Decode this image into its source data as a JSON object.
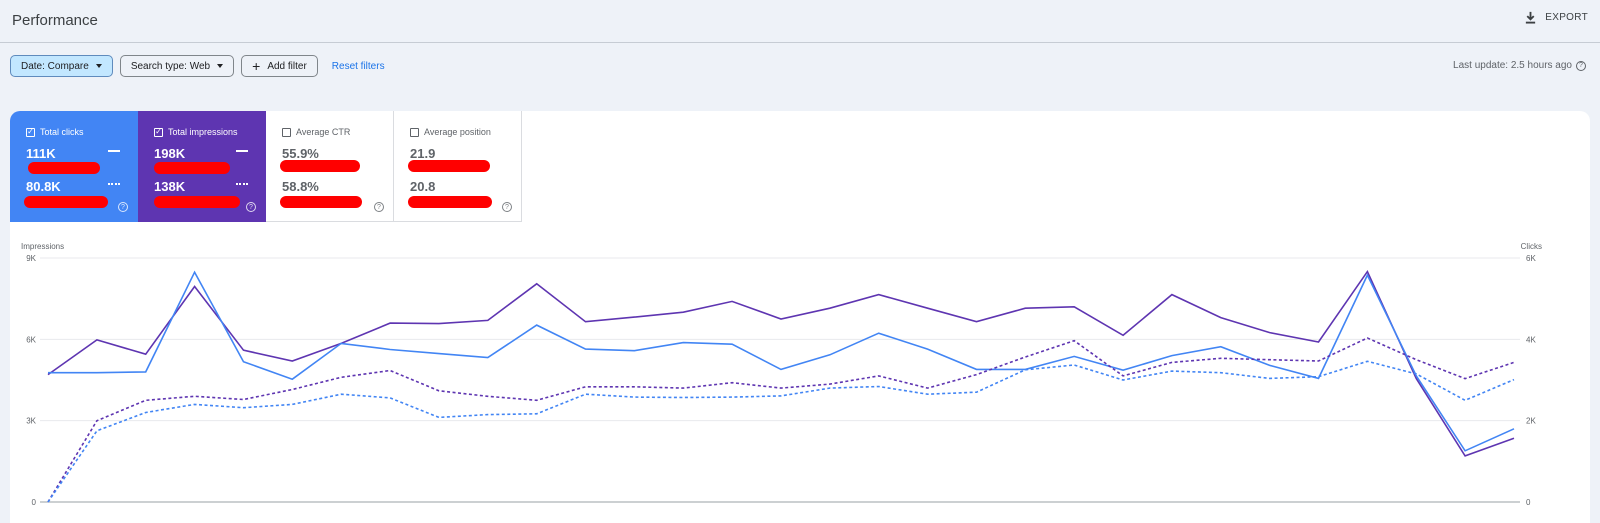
{
  "header": {
    "title": "Performance",
    "export_label": "EXPORT"
  },
  "filters": {
    "date": "Date: Compare",
    "search_type": "Search type: Web",
    "add_filter": "Add filter",
    "reset": "Reset filters"
  },
  "last_update": "Last update: 2.5 hours ago",
  "cards": {
    "clicks": {
      "label": "Total clicks",
      "current": "111K",
      "previous": "80.8K",
      "checked": true,
      "color": "#4285f4"
    },
    "impressions": {
      "label": "Total impressions",
      "current": "198K",
      "previous": "138K",
      "checked": true,
      "color": "#5e35b1"
    },
    "ctr": {
      "label": "Average CTR",
      "current": "55.9%",
      "previous": "58.8%",
      "checked": false
    },
    "position": {
      "label": "Average position",
      "current": "21.9",
      "previous": "20.8",
      "checked": false
    }
  },
  "chart_data": {
    "type": "line",
    "left_axis": {
      "label": "Impressions",
      "ticks": [
        "9K",
        "6K",
        "3K",
        "0"
      ],
      "range": [
        0,
        9000
      ]
    },
    "right_axis": {
      "label": "Clicks",
      "ticks": [
        "6K",
        "4K",
        "2K",
        "0"
      ],
      "range": [
        0,
        6000
      ]
    },
    "grid": true,
    "series": [
      {
        "axis": "left",
        "style": "solid",
        "color": "#5e35b1",
        "values": [
          4700,
          5980,
          5450,
          7950,
          5600,
          5200,
          5850,
          6600,
          6580,
          6700,
          8050,
          6650,
          6820,
          7000,
          7400,
          6750,
          7150,
          7650,
          7150,
          6650,
          7150,
          7200,
          6150,
          7650,
          6800,
          6250,
          5900,
          8500,
          4550,
          1700,
          2350
        ]
      },
      {
        "axis": "right",
        "style": "solid",
        "color": "#4285f4",
        "values": [
          3180,
          3180,
          3200,
          5650,
          3450,
          3020,
          3900,
          3750,
          3650,
          3550,
          4350,
          3760,
          3720,
          3920,
          3880,
          3260,
          3620,
          4150,
          3760,
          3260,
          3260,
          3580,
          3240,
          3600,
          3820,
          3360,
          3040,
          5580,
          3100,
          1260,
          1800
        ]
      },
      {
        "axis": "left",
        "style": "dashed",
        "color": "#5e35b1",
        "values": [
          0,
          3000,
          3750,
          3900,
          3780,
          4150,
          4600,
          4850,
          4100,
          3900,
          3750,
          4250,
          4250,
          4200,
          4400,
          4200,
          4350,
          4650,
          4200,
          4700,
          5350,
          5950,
          4650,
          5150,
          5300,
          5250,
          5200,
          6050,
          5250,
          4550,
          5150
        ]
      },
      {
        "axis": "right",
        "style": "dashed",
        "color": "#4285f4",
        "values": [
          0,
          1750,
          2200,
          2400,
          2320,
          2400,
          2650,
          2560,
          2080,
          2150,
          2170,
          2650,
          2580,
          2570,
          2580,
          2610,
          2800,
          2840,
          2650,
          2700,
          3250,
          3370,
          3000,
          3220,
          3180,
          3040,
          3080,
          3460,
          3150,
          2500,
          3010
        ]
      }
    ]
  },
  "colors": {
    "accent": "#1a73e8",
    "clicks": "#4285f4",
    "impressions": "#5e35b1",
    "redaction": "#ff0000"
  }
}
